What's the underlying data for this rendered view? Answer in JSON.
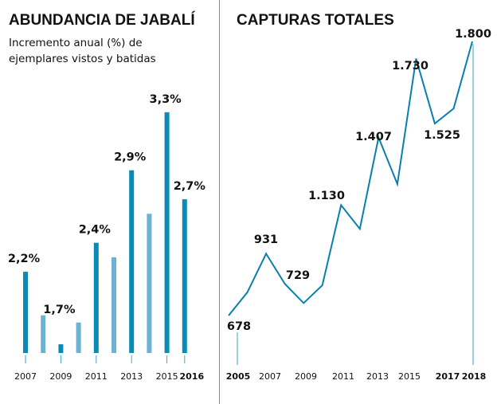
{
  "chart_data": [
    {
      "type": "bar",
      "title": "ABUNDANCIA DE JABALÍ",
      "subtitle": [
        "Incremento anual (%) de",
        "ejemplares vistos y batidas"
      ],
      "categories": [
        2007,
        2008,
        2009,
        2010,
        2011,
        2012,
        2013,
        2014,
        2015,
        2016
      ],
      "values": [
        2.2,
        1.9,
        1.7,
        1.85,
        2.4,
        2.3,
        2.9,
        2.6,
        3.3,
        2.7
      ],
      "data_labels": {
        "2007": "2,2%",
        "2009": "1,7%",
        "2011": "2,4%",
        "2013": "2,9%",
        "2015": "3,3%",
        "2016": "2,7%"
      },
      "tick_labels": [
        "2007",
        "2009",
        "2011",
        "2013",
        "2015",
        "2016"
      ],
      "unit": "%",
      "colors": {
        "labeled": "#0a8ab4",
        "unlabeled": "#6cb2d2"
      },
      "grid": false
    },
    {
      "type": "line",
      "title": "CAPTURAS TOTALES",
      "x": [
        2005,
        2006,
        2007,
        2008,
        2009,
        2010,
        2011,
        2012,
        2013,
        2014,
        2015,
        2016,
        2017,
        2018
      ],
      "y": [
        678,
        773,
        931,
        808,
        729,
        802,
        1130,
        1033,
        1407,
        1216,
        1730,
        1464,
        1525,
        1800
      ],
      "data_labels": {
        "2005": "678",
        "2007": "931",
        "2009": "729",
        "2011": "1.130",
        "2013": "1.407",
        "2015": "1.730",
        "2017": "1.525",
        "2018": "1.800"
      },
      "tick_labels": [
        "2005",
        "2007",
        "2009",
        "2011",
        "2013",
        "2015",
        "2017",
        "2018"
      ],
      "bold_ticks": [
        "2005",
        "2017",
        "2018"
      ],
      "color": "#0a7fad",
      "grid": false
    }
  ]
}
